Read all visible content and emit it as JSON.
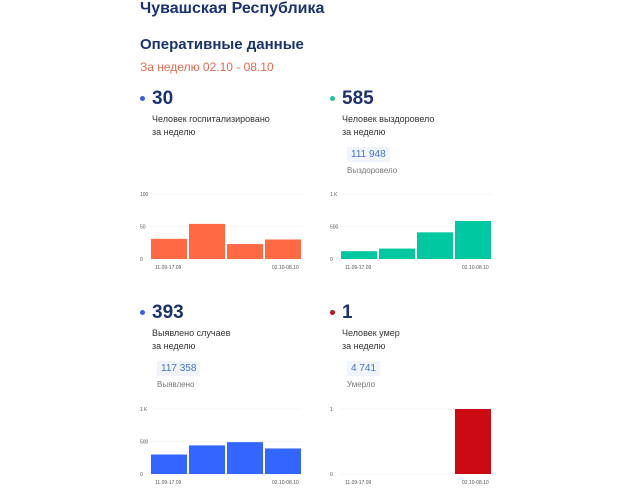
{
  "header": {
    "region": "Чувашская Республика",
    "section": "Оперативные данные",
    "period": "За неделю 02.10 - 08.10"
  },
  "cards": [
    {
      "value": "30",
      "desc1": "Человек госпитализировано",
      "desc2": "за неделю",
      "total": null,
      "total_label": null,
      "dot": "#3b5fe0"
    },
    {
      "value": "585",
      "desc1": "Человек выздоровело",
      "desc2": "за неделю",
      "total": "111 948",
      "total_label": "Выздоровело",
      "dot": "#1fc2a0"
    },
    {
      "value": "393",
      "desc1": "Выявлено случаев",
      "desc2": "за неделю",
      "total": "117 358",
      "total_label": "Выявлено",
      "dot": "#3b5fe0"
    },
    {
      "value": "1",
      "desc1": "Человек умер",
      "desc2": "за неделю",
      "total": "4 741",
      "total_label": "Умерло",
      "dot": "#c8101a"
    }
  ],
  "chart_data": [
    {
      "type": "bar",
      "color": "#ff6a45",
      "yticks": [
        "0",
        "50",
        "100"
      ],
      "ylim": [
        0,
        100
      ],
      "xlabels": [
        "11.09-17.09",
        "02.10-08.10"
      ],
      "values": [
        31,
        54,
        23,
        30
      ]
    },
    {
      "type": "bar",
      "color": "#00c8a0",
      "yticks": [
        "0",
        "500",
        "1 К"
      ],
      "ylim": [
        0,
        1000
      ],
      "xlabels": [
        "11.09-17.09",
        "02.10-08.10"
      ],
      "values": [
        120,
        160,
        410,
        585
      ]
    },
    {
      "type": "bar",
      "color": "#3366ff",
      "yticks": [
        "0",
        "500",
        "1 К"
      ],
      "ylim": [
        0,
        1000
      ],
      "xlabels": [
        "11.09-17.09",
        "02.10-08.10"
      ],
      "values": [
        300,
        440,
        490,
        393
      ]
    },
    {
      "type": "bar",
      "color": "#cc0a14",
      "yticks": [
        "0",
        "1"
      ],
      "ylim": [
        0,
        1
      ],
      "xlabels": [
        "11.09-17.09",
        "02.10-08.10"
      ],
      "values": [
        0,
        0,
        0,
        1
      ]
    }
  ]
}
